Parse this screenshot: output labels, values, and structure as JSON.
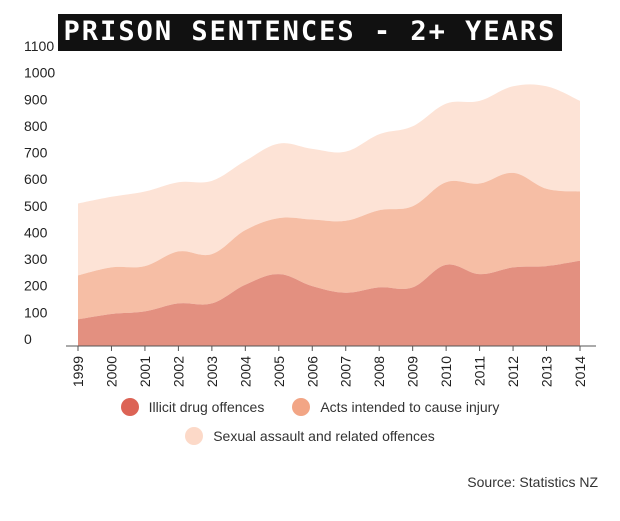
{
  "chart_data": {
    "type": "area",
    "stacked": true,
    "title": "Prison sentences - 2+ years",
    "categories": [
      "1999",
      "2000",
      "2001",
      "2002",
      "2003",
      "2004",
      "2005",
      "2006",
      "2007",
      "2008",
      "2009",
      "2010",
      "2011",
      "2012",
      "2013",
      "2014"
    ],
    "series": [
      {
        "name": "Illicit drug offences",
        "color": "#e39080",
        "values": [
          100,
          120,
          130,
          160,
          160,
          230,
          270,
          225,
          200,
          220,
          220,
          305,
          270,
          295,
          300,
          320
        ]
      },
      {
        "name": "Acts intended to cause injury",
        "color": "#f6bea5",
        "values": [
          165,
          175,
          170,
          195,
          185,
          205,
          210,
          250,
          270,
          290,
          305,
          310,
          340,
          355,
          290,
          260
        ]
      },
      {
        "name": "Sexual assault and related offences",
        "color": "#fde3d6",
        "values": [
          270,
          265,
          280,
          260,
          275,
          260,
          280,
          265,
          260,
          285,
          300,
          295,
          310,
          325,
          385,
          340
        ]
      }
    ],
    "yticks": [
      0,
      100,
      200,
      300,
      400,
      500,
      600,
      700,
      800,
      900,
      1000,
      1100
    ],
    "ylim": [
      0,
      1100
    ],
    "grid": false,
    "legend_position": "bottom",
    "source": "Source: Statistics NZ"
  }
}
